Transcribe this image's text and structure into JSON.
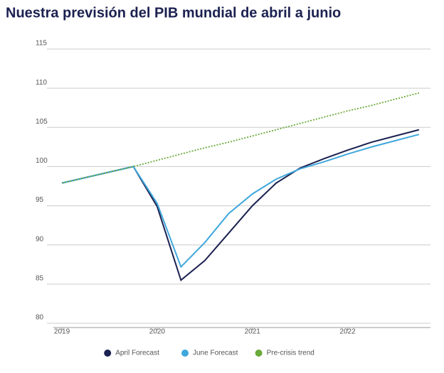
{
  "chart_data": {
    "type": "line",
    "title": "Nuestra previsión del PIB mundial de abril a junio",
    "x": [
      2019,
      2019.25,
      2019.5,
      2019.75,
      2020,
      2020.25,
      2020.5,
      2020.75,
      2021,
      2021.25,
      2021.5,
      2021.75,
      2022,
      2022.25,
      2022.5,
      2022.75
    ],
    "series": [
      {
        "name": "April Forecast",
        "color": "#1b2150",
        "dash": false,
        "values": [
          97.9,
          98.6,
          99.3,
          100.0,
          94.9,
          85.5,
          88.0,
          91.5,
          95.0,
          97.9,
          99.8,
          101.0,
          102.1,
          103.1,
          103.9,
          104.7
        ]
      },
      {
        "name": "June Forecast",
        "color": "#3fa7dc",
        "dash": false,
        "values": [
          97.9,
          98.6,
          99.3,
          100.0,
          95.3,
          87.2,
          90.3,
          94.0,
          96.5,
          98.4,
          99.7,
          100.6,
          101.6,
          102.5,
          103.3,
          104.1
        ]
      },
      {
        "name": "Pre-crisis trend",
        "color": "#6aaa3a",
        "dash": true,
        "values": [
          97.9,
          98.6,
          99.3,
          100.0,
          100.8,
          101.6,
          102.4,
          103.1,
          103.9,
          104.7,
          105.5,
          106.3,
          107.1,
          107.8,
          108.6,
          109.4
        ]
      }
    ],
    "xlim": [
      2018.91,
      2022.87
    ],
    "xticks": [
      2019,
      2020,
      2021,
      2022
    ],
    "ylim": [
      80,
      115
    ],
    "yticks": [
      80,
      85,
      90,
      95,
      100,
      105,
      110,
      115
    ],
    "grid": true,
    "legend": "bottom"
  }
}
